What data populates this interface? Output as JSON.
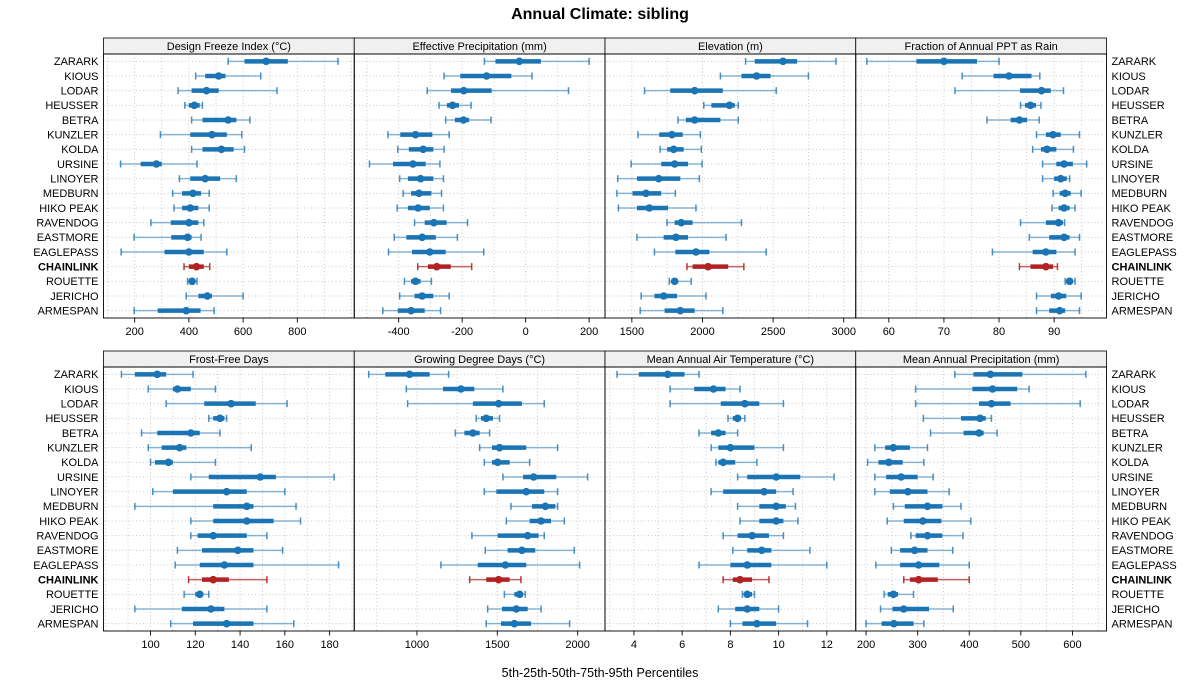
{
  "title": "Annual Climate: sibling",
  "caption": "5th-25th-50th-75th-95th Percentiles",
  "highlight_station": "CHAINLINK",
  "percentiles": [
    "5th",
    "25th",
    "50th",
    "75th",
    "95th"
  ],
  "colors": {
    "series_main": "#1b74b4",
    "series_whisker": "rgba(27,116,180,0.5)",
    "series_cap": "rgba(27,116,180,0.8)",
    "highlight_main": "#b22222",
    "highlight_whisker": "rgba(178,34,34,0.7)",
    "highlight_cap": "rgba(178,34,34,0.9)",
    "strip_fill": "#f0f0f0",
    "grid": "#c9c9c9",
    "border": "#000000"
  },
  "stations": [
    "ZARARK",
    "KIOUS",
    "LODAR",
    "HEUSSER",
    "BETRA",
    "KUNZLER",
    "KOLDA",
    "URSINE",
    "LINOYER",
    "MEDBURN",
    "HIKO PEAK",
    "RAVENDOG",
    "EASTMORE",
    "EAGLEPASS",
    "CHAINLINK",
    "ROUETTE",
    "JERICHO",
    "ARMESPAN"
  ],
  "chart_data": [
    {
      "type": "dotplot",
      "title": "Design Freeze Index (°C)",
      "xlim": [
        85,
        1010
      ],
      "ticks": [
        200,
        400,
        600,
        800
      ],
      "minor": 100,
      "values": [
        [
          545,
          605,
          685,
          765,
          950
        ],
        [
          425,
          460,
          510,
          535,
          665
        ],
        [
          360,
          410,
          465,
          510,
          725
        ],
        [
          385,
          400,
          420,
          440,
          450
        ],
        [
          410,
          450,
          545,
          575,
          625
        ],
        [
          295,
          405,
          485,
          540,
          595
        ],
        [
          410,
          450,
          520,
          565,
          605
        ],
        [
          148,
          222,
          280,
          300,
          430
        ],
        [
          365,
          405,
          460,
          515,
          575
        ],
        [
          340,
          375,
          415,
          445,
          475
        ],
        [
          345,
          375,
          405,
          435,
          475
        ],
        [
          260,
          333,
          400,
          435,
          455
        ],
        [
          198,
          335,
          395,
          410,
          445
        ],
        [
          150,
          310,
          400,
          455,
          540
        ],
        [
          382,
          400,
          428,
          455,
          477
        ],
        [
          395,
          400,
          412,
          420,
          430
        ],
        [
          390,
          435,
          468,
          485,
          600
        ],
        [
          198,
          285,
          390,
          443,
          493
        ]
      ]
    },
    {
      "type": "dotplot",
      "title": "Effective Precipitation (mm)",
      "xlim": [
        -540,
        250
      ],
      "ticks": [
        -400,
        -200,
        0,
        200
      ],
      "minor": 100,
      "values": [
        [
          -130,
          -95,
          -20,
          48,
          200
        ],
        [
          -257,
          -206,
          -123,
          -45,
          20
        ],
        [
          -310,
          -235,
          -195,
          -107,
          135
        ],
        [
          -273,
          -248,
          -230,
          -210,
          -172
        ],
        [
          -252,
          -223,
          -196,
          -178,
          -109
        ],
        [
          -434,
          -395,
          -347,
          -294,
          -241
        ],
        [
          -403,
          -368,
          -323,
          -291,
          -257
        ],
        [
          -492,
          -418,
          -355,
          -315,
          -270
        ],
        [
          -397,
          -371,
          -331,
          -291,
          -259
        ],
        [
          -386,
          -361,
          -336,
          -297,
          -265
        ],
        [
          -405,
          -371,
          -339,
          -302,
          -259
        ],
        [
          -350,
          -318,
          -289,
          -249,
          -183
        ],
        [
          -414,
          -376,
          -326,
          -283,
          -215
        ],
        [
          -432,
          -358,
          -302,
          -252,
          -132
        ],
        [
          -340,
          -308,
          -280,
          -236,
          -170
        ],
        [
          -382,
          -361,
          -347,
          -331,
          -297
        ],
        [
          -397,
          -350,
          -326,
          -291,
          -241
        ],
        [
          -450,
          -403,
          -361,
          -318,
          -268
        ]
      ]
    },
    {
      "type": "dotplot",
      "title": "Elevation (m)",
      "xlim": [
        1310,
        3085
      ],
      "ticks": [
        1500,
        2000,
        2500,
        3000
      ],
      "minor": 250,
      "values": [
        [
          2305,
          2370,
          2570,
          2670,
          2945
        ],
        [
          2127,
          2276,
          2383,
          2482,
          2750
        ],
        [
          1590,
          1772,
          1945,
          2144,
          2522
        ],
        [
          2009,
          2063,
          2191,
          2229,
          2253
        ],
        [
          1827,
          1883,
          1945,
          2127,
          2253
        ],
        [
          1543,
          1694,
          1784,
          1860,
          1985
        ],
        [
          1700,
          1750,
          1796,
          1867,
          1992
        ],
        [
          1495,
          1708,
          1803,
          1898,
          1997
        ],
        [
          1400,
          1536,
          1690,
          1843,
          1978
        ],
        [
          1394,
          1505,
          1600,
          1708,
          1808
        ],
        [
          1405,
          1536,
          1623,
          1756,
          1954
        ],
        [
          1749,
          1803,
          1850,
          1930,
          2276
        ],
        [
          1536,
          1725,
          1812,
          1898,
          2167
        ],
        [
          1660,
          1808,
          1954,
          2049,
          2451
        ],
        [
          1890,
          1930,
          2040,
          2182,
          2293
        ],
        [
          1765,
          1780,
          1803,
          1827,
          1920
        ],
        [
          1566,
          1660,
          1725,
          1820,
          2025
        ],
        [
          1559,
          1732,
          1843,
          1945,
          2144
        ]
      ]
    },
    {
      "type": "dotplot",
      "title": "Fraction of Annual PPT as Rain",
      "xlim": [
        54,
        99.5
      ],
      "ticks": [
        60,
        70,
        80,
        90
      ],
      "minor": 5,
      "values": [
        [
          56,
          65,
          70,
          76,
          80
        ],
        [
          73.3,
          79,
          81.8,
          85.9,
          87.4
        ],
        [
          72,
          83.8,
          87.7,
          89.4,
          91.7
        ],
        [
          83.9,
          84.7,
          85.7,
          86.7,
          87.6
        ],
        [
          77.8,
          82.1,
          83.7,
          85.1,
          87.3
        ],
        [
          86.8,
          88.5,
          89.8,
          91.2,
          94.6
        ],
        [
          86.1,
          87.6,
          88.7,
          90.4,
          93.5
        ],
        [
          87.9,
          90.4,
          91.8,
          93.4,
          95.9
        ],
        [
          87.9,
          90,
          91.2,
          92.3,
          92.8
        ],
        [
          89.8,
          91,
          92,
          93,
          94.9
        ],
        [
          89.6,
          90.8,
          91.8,
          92.8,
          93.8
        ],
        [
          83.9,
          88.5,
          90.8,
          91.6,
          91.9
        ],
        [
          85.5,
          89.1,
          91.8,
          92.8,
          94.6
        ],
        [
          78.8,
          86.1,
          88.5,
          90.4,
          93.8
        ],
        [
          83.7,
          85.7,
          88.5,
          89.8,
          90.6
        ],
        [
          92,
          92.4,
          92.8,
          93.4,
          93.8
        ],
        [
          86.8,
          89.4,
          90.8,
          92.2,
          94.9
        ],
        [
          86.8,
          89.1,
          91,
          92,
          94.6
        ]
      ]
    },
    {
      "type": "dotplot",
      "title": "Frost-Free Days",
      "xlim": [
        79,
        191
      ],
      "ticks": [
        100,
        120,
        140,
        160,
        180
      ],
      "minor": 10,
      "values": [
        [
          87,
          93,
          103,
          107,
          119
        ],
        [
          99,
          110,
          112,
          118,
          129
        ],
        [
          107,
          124,
          136,
          147,
          161
        ],
        [
          126,
          128,
          131,
          133,
          134
        ],
        [
          96,
          103,
          118,
          122,
          131
        ],
        [
          99,
          105,
          113,
          116,
          145
        ],
        [
          100,
          102,
          108,
          110,
          129
        ],
        [
          118,
          126,
          149,
          156,
          182
        ],
        [
          101,
          110,
          134,
          143,
          160
        ],
        [
          93,
          128,
          143,
          146,
          165
        ],
        [
          118,
          128,
          143,
          155,
          167
        ],
        [
          118,
          121,
          128,
          143,
          152
        ],
        [
          112,
          123,
          139,
          146,
          159
        ],
        [
          111,
          122,
          133,
          146,
          184
        ],
        [
          117,
          123,
          128,
          135,
          152
        ],
        [
          115,
          120,
          122,
          123,
          126
        ],
        [
          93,
          114,
          127,
          133,
          152
        ],
        [
          109,
          119,
          134,
          146,
          164
        ]
      ]
    },
    {
      "type": "dotplot",
      "title": "Growing Degree Days (°C)",
      "xlim": [
        610,
        2170
      ],
      "ticks": [
        1000,
        1500,
        2000
      ],
      "minor": 250,
      "values": [
        [
          700,
          803,
          954,
          1079,
          1197
        ],
        [
          934,
          1162,
          1274,
          1357,
          1535
        ],
        [
          942,
          1348,
          1508,
          1653,
          1792
        ],
        [
          1369,
          1398,
          1431,
          1473,
          1514
        ],
        [
          1239,
          1295,
          1348,
          1390,
          1452
        ],
        [
          1390,
          1467,
          1514,
          1680,
          1875
        ],
        [
          1419,
          1467,
          1502,
          1577,
          1701
        ],
        [
          1535,
          1660,
          1726,
          1867,
          2062
        ],
        [
          1419,
          1494,
          1680,
          1792,
          1875
        ],
        [
          1585,
          1716,
          1799,
          1861,
          1875
        ],
        [
          1556,
          1701,
          1772,
          1834,
          1917
        ],
        [
          1342,
          1502,
          1689,
          1757,
          1792
        ],
        [
          1425,
          1564,
          1653,
          1736,
          1979
        ],
        [
          1149,
          1378,
          1550,
          1680,
          2012
        ],
        [
          1328,
          1431,
          1508,
          1577,
          1647
        ],
        [
          1544,
          1606,
          1639,
          1660,
          1674
        ],
        [
          1440,
          1529,
          1618,
          1689,
          1772
        ],
        [
          1431,
          1523,
          1606,
          1710,
          1950
        ]
      ]
    },
    {
      "type": "dotplot",
      "title": "Mean Annual Air Temperature (°C)",
      "xlim": [
        2.8,
        13.2
      ],
      "ticks": [
        4,
        6,
        8,
        10,
        12
      ],
      "minor": 1,
      "values": [
        [
          3.3,
          4.2,
          5.4,
          6.1,
          6.7
        ],
        [
          5.5,
          6.5,
          7.3,
          7.8,
          8.4
        ],
        [
          5.5,
          7.6,
          8.6,
          9.2,
          10.2
        ],
        [
          7.9,
          8.1,
          8.3,
          8.4,
          8.6
        ],
        [
          6.7,
          7.2,
          7.5,
          7.8,
          8.3
        ],
        [
          7.2,
          7.5,
          8.0,
          9.0,
          10.2
        ],
        [
          7.4,
          7.5,
          7.7,
          8.2,
          9.1
        ],
        [
          8.3,
          8.7,
          9.9,
          10.9,
          12.3
        ],
        [
          7.2,
          7.7,
          9.4,
          9.9,
          10.6
        ],
        [
          8.3,
          9.2,
          9.9,
          10.3,
          10.7
        ],
        [
          8.4,
          9.2,
          9.9,
          10.2,
          10.8
        ],
        [
          7.7,
          8.3,
          8.9,
          9.6,
          10.2
        ],
        [
          8.1,
          8.7,
          9.3,
          9.7,
          11.3
        ],
        [
          6.7,
          8.0,
          8.7,
          9.7,
          12.0
        ],
        [
          7.7,
          8.1,
          8.4,
          8.9,
          9.6
        ],
        [
          8.5,
          8.6,
          8.7,
          8.9,
          9.0
        ],
        [
          7.5,
          8.2,
          8.7,
          9.2,
          10.0
        ],
        [
          8.0,
          8.5,
          9.1,
          9.9,
          11.2
        ]
      ]
    },
    {
      "type": "dotplot",
      "title": "Mean Annual Precipitation (mm)",
      "xlim": [
        180,
        666
      ],
      "ticks": [
        200,
        300,
        400,
        500,
        600
      ],
      "minor": 50,
      "values": [
        [
          372,
          408,
          441,
          503,
          626
        ],
        [
          296,
          406,
          445,
          493,
          516
        ],
        [
          296,
          419,
          443,
          480,
          615
        ],
        [
          311,
          384,
          421,
          432,
          443
        ],
        [
          325,
          389,
          419,
          428,
          454
        ],
        [
          217,
          237,
          253,
          285,
          319
        ],
        [
          203,
          224,
          244,
          271,
          312
        ],
        [
          217,
          239,
          268,
          300,
          330
        ],
        [
          217,
          246,
          281,
          319,
          361
        ],
        [
          253,
          275,
          319,
          348,
          384
        ],
        [
          241,
          273,
          310,
          346,
          403
        ],
        [
          287,
          296,
          319,
          348,
          388
        ],
        [
          249,
          266,
          294,
          319,
          368
        ],
        [
          219,
          266,
          302,
          342,
          400
        ],
        [
          273,
          285,
          302,
          339,
          400
        ],
        [
          235,
          242,
          253,
          262,
          292
        ],
        [
          228,
          251,
          273,
          322,
          369
        ],
        [
          200,
          230,
          254,
          292,
          312
        ]
      ]
    }
  ]
}
